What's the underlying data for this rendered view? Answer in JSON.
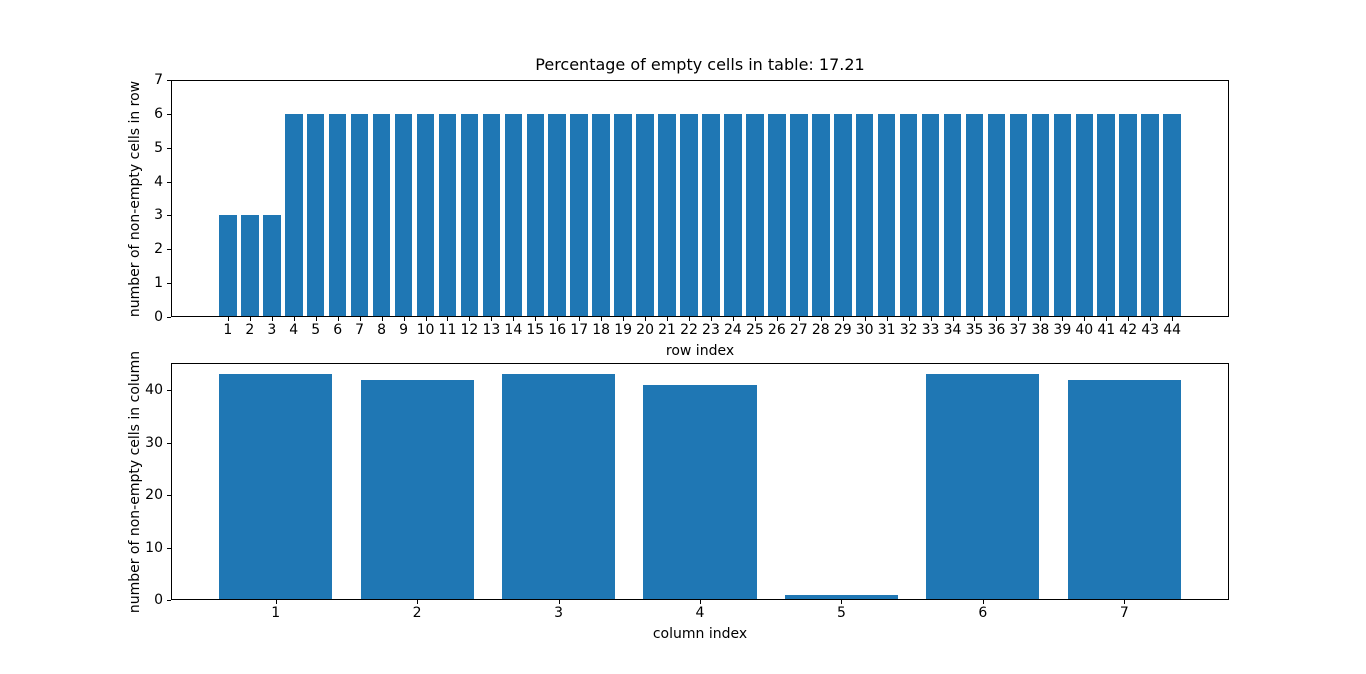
{
  "figure": {
    "title": "Percentage of empty cells in table: 17.21",
    "bar_color": "#1f77b4",
    "background_color": "#ffffff",
    "axis_color": "#000000",
    "empty_cells_percentage": 17.21
  },
  "chart_data": [
    {
      "id": "rows",
      "type": "bar",
      "title": "Percentage of empty cells in table: 17.21",
      "xlabel": "row index",
      "ylabel": "number of non-empty cells in row",
      "categories": [
        1,
        2,
        3,
        4,
        5,
        6,
        7,
        8,
        9,
        10,
        11,
        12,
        13,
        14,
        15,
        16,
        17,
        18,
        19,
        20,
        21,
        22,
        23,
        24,
        25,
        26,
        27,
        28,
        29,
        30,
        31,
        32,
        33,
        34,
        35,
        36,
        37,
        38,
        39,
        40,
        41,
        42,
        43,
        44
      ],
      "values": [
        3,
        3,
        3,
        6,
        6,
        6,
        6,
        6,
        6,
        6,
        6,
        6,
        6,
        6,
        6,
        6,
        6,
        6,
        6,
        6,
        6,
        6,
        6,
        6,
        6,
        6,
        6,
        6,
        6,
        6,
        6,
        6,
        6,
        6,
        6,
        6,
        6,
        6,
        6,
        6,
        6,
        6,
        6,
        6
      ],
      "xlim": [
        -1.59,
        46.59
      ],
      "ylim": [
        0,
        7
      ],
      "yticks": [
        0,
        1,
        2,
        3,
        4,
        5,
        6,
        7
      ],
      "bar_width": 0.8,
      "grid": false,
      "legend": null
    },
    {
      "id": "columns",
      "type": "bar",
      "title": "",
      "xlabel": "column index",
      "ylabel": "number of non-empty cells in column",
      "categories": [
        1,
        2,
        3,
        4,
        5,
        6,
        7
      ],
      "values": [
        43,
        42,
        43,
        41,
        1,
        43,
        42
      ],
      "xlim": [
        0.26,
        7.74
      ],
      "ylim": [
        0,
        45.15
      ],
      "yticks": [
        0,
        10,
        20,
        30,
        40
      ],
      "bar_width": 0.8,
      "grid": false,
      "legend": null
    }
  ]
}
